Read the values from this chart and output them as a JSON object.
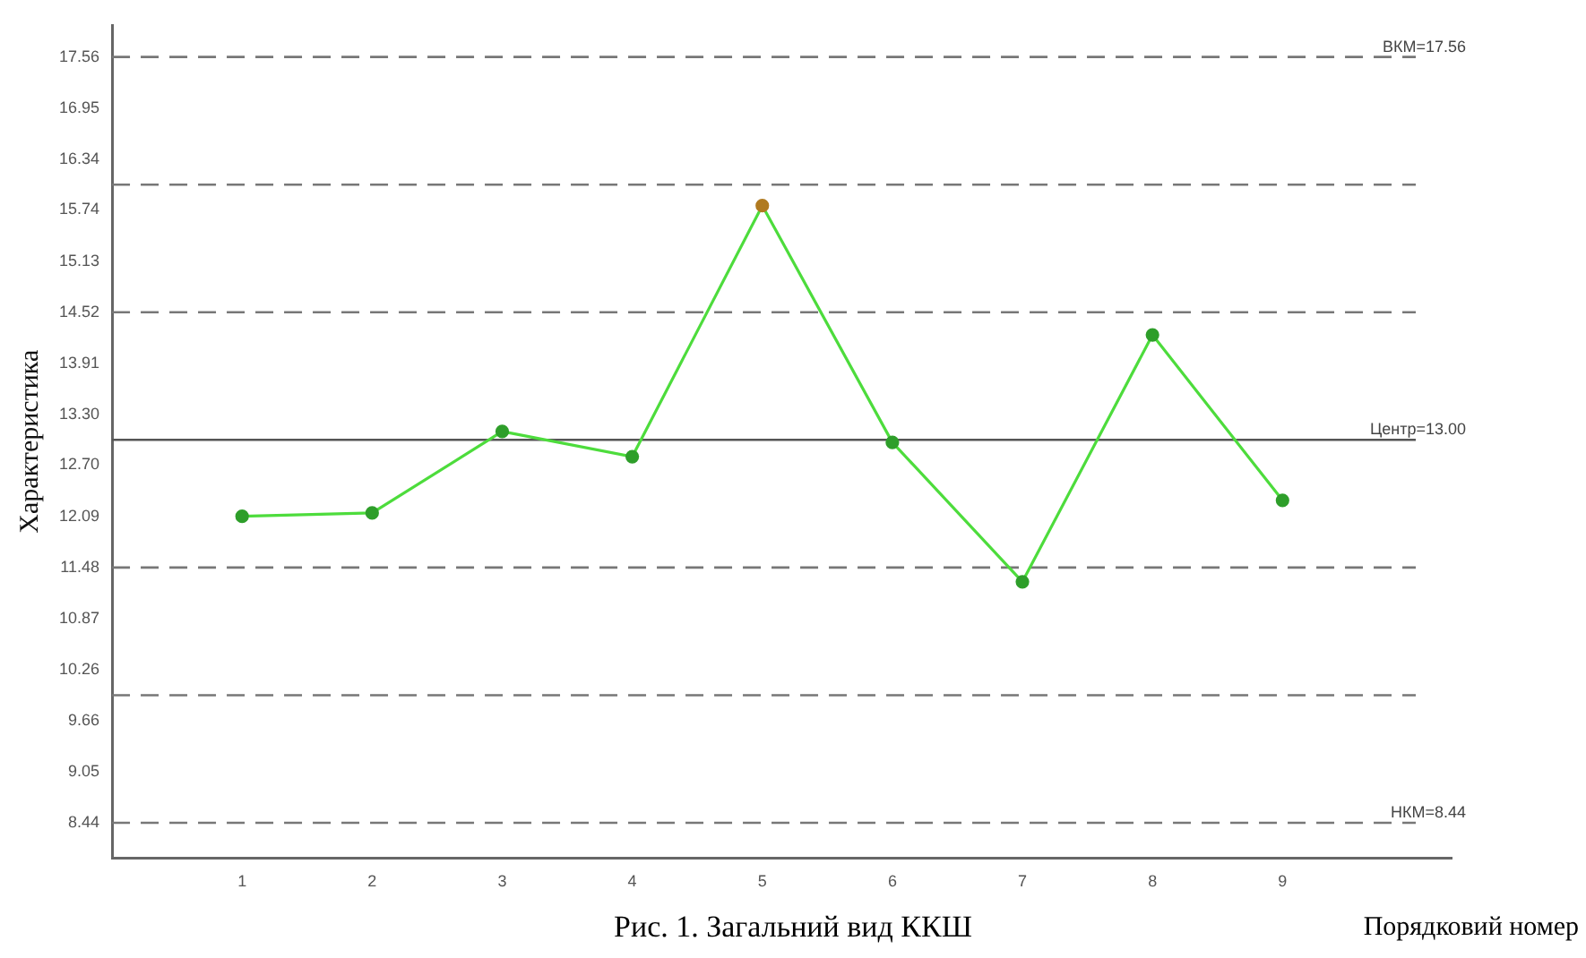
{
  "chart_data": {
    "type": "line",
    "title": "Рис. 1. Загальний вид ККШ",
    "xlabel": "Порядковий номер",
    "ylabel": "Характеристика",
    "x": [
      1,
      2,
      3,
      4,
      5,
      6,
      7,
      8,
      9
    ],
    "series": [
      {
        "color": "#4ddc3c",
        "colors": [
          "#2e9e2a",
          "#2e9e2a",
          "#2e9e2a",
          "#2e9e2a",
          "#b07a20",
          "#2e9e2a",
          "#2e9e2a",
          "#2e9e2a",
          "#2e9e2a"
        ],
        "values": [
          12.09,
          12.13,
          13.1,
          12.8,
          15.79,
          12.97,
          11.31,
          14.25,
          12.28
        ]
      }
    ],
    "xlim": [
      0,
      10.3
    ],
    "xticks": [
      1,
      2,
      3,
      4,
      5,
      6,
      7,
      8,
      9
    ],
    "ylim": [
      8.02,
      17.94
    ],
    "yticks": [
      8.44,
      9.05,
      9.66,
      10.26,
      10.87,
      11.48,
      12.09,
      {
        "value": 12.7,
        "label": "12.70"
      },
      {
        "value": 13.3,
        "label": "13.30"
      },
      13.91,
      14.52,
      15.13,
      15.74,
      16.34,
      16.95,
      17.56
    ],
    "ref_lines": [
      {
        "axis": "y",
        "value": 17.56,
        "label": "ВКМ=17.56",
        "color": "#777777",
        "line_style": "dashed"
      },
      {
        "axis": "y",
        "value": 16.04,
        "color": "#777777",
        "line_style": "dashed"
      },
      {
        "axis": "y",
        "value": 14.52,
        "color": "#777777",
        "line_style": "dashed"
      },
      {
        "axis": "y",
        "value": 13.0,
        "label": "Центр=13.00",
        "color": "#555555",
        "line_style": "solid"
      },
      {
        "axis": "y",
        "value": 11.48,
        "color": "#777777",
        "line_style": "dashed"
      },
      {
        "axis": "y",
        "value": 9.96,
        "color": "#777777",
        "line_style": "dashed"
      },
      {
        "axis": "y",
        "value": 8.44,
        "label": "НКМ=8.44",
        "color": "#777777",
        "line_style": "dashed"
      }
    ],
    "grid": false,
    "legend": false,
    "marker": "circle",
    "line_style": "solid"
  }
}
